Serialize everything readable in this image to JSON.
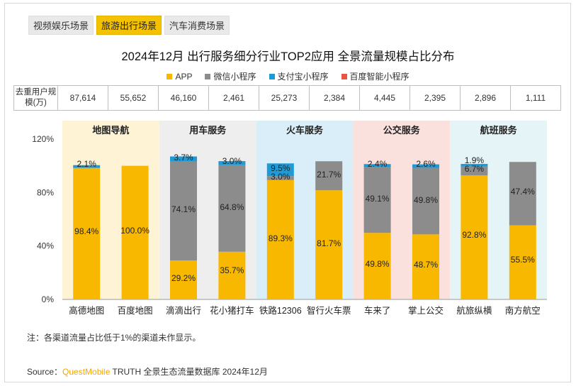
{
  "tabs": [
    {
      "label": "视频娱乐场景",
      "active": false
    },
    {
      "label": "旅游出行场景",
      "active": true
    },
    {
      "label": "汽车消费场景",
      "active": false
    }
  ],
  "chart_data": {
    "type": "bar",
    "stacked": true,
    "title": "2024年12月 出行服务细分行业TOP2应用 全景流量规模占比分布",
    "ylim": [
      0,
      120
    ],
    "yticks": [
      "0%",
      "40%",
      "80%",
      "120%"
    ],
    "groups": [
      {
        "label": "地图导航",
        "color": "#fff3d6",
        "apps": [
          0,
          1
        ]
      },
      {
        "label": "用车服务",
        "color": "#eeeeee",
        "apps": [
          2,
          3
        ]
      },
      {
        "label": "火车服务",
        "color": "#d9eef8",
        "apps": [
          4,
          5
        ]
      },
      {
        "label": "公交服务",
        "color": "#fbe1dd",
        "apps": [
          6,
          7
        ]
      },
      {
        "label": "航班服务",
        "color": "#e5f4f6",
        "apps": [
          8,
          9
        ]
      }
    ],
    "categories": [
      "高德地图",
      "百度地图",
      "滴滴出行",
      "花小猪打车",
      "铁路12306",
      "智行火车票",
      "车来了",
      "掌上公交",
      "航旅纵横",
      "南方航空"
    ],
    "user_scale_header": "去重用户规模(万)",
    "user_scale": [
      "87,614",
      "55,652",
      "46,160",
      "2,461",
      "25,273",
      "2,384",
      "4,445",
      "2,395",
      "2,896",
      "1,111"
    ],
    "series": [
      {
        "name": "APP",
        "color": "#f9b800",
        "values": [
          98.4,
          100.0,
          29.2,
          35.7,
          89.3,
          81.7,
          49.8,
          48.7,
          92.8,
          55.5
        ]
      },
      {
        "name": "微信小程序",
        "color": "#8c8c8c",
        "values": [
          0,
          0,
          74.1,
          64.8,
          3.0,
          21.7,
          49.1,
          49.8,
          6.7,
          47.4
        ]
      },
      {
        "name": "支付宝小程序",
        "color": "#1e9bd7",
        "values": [
          2.1,
          0,
          3.7,
          3.0,
          9.5,
          0,
          2.4,
          2.6,
          1.9,
          0
        ]
      },
      {
        "name": "百度智能小程序",
        "color": "#e8543f",
        "values": [
          0,
          0,
          0,
          0,
          0,
          0,
          0,
          0,
          0,
          0
        ]
      }
    ],
    "data_labels": [
      [
        "98.4%",
        "100.0%",
        "29.2%",
        "35.7%",
        "89.3%",
        "81.7%",
        "49.8%",
        "48.7%",
        "92.8%",
        "55.5%"
      ],
      [
        "",
        "",
        "74.1%",
        "64.8%",
        "3.0%",
        "21.7%",
        "49.1%",
        "49.8%",
        "6.7%",
        "47.4%"
      ],
      [
        "2.1%",
        "",
        "3.7%",
        "3.0%",
        "9.5%",
        "",
        "2.4%",
        "2.6%",
        "1.9%",
        ""
      ]
    ]
  },
  "note": "注：各渠道流量占比低于1%的渠道未作显示。",
  "source": {
    "prefix": "Source：",
    "brand": "QuestMobile",
    "suffix": " TRUTH 全景生态流量数据库 2024年12月"
  }
}
